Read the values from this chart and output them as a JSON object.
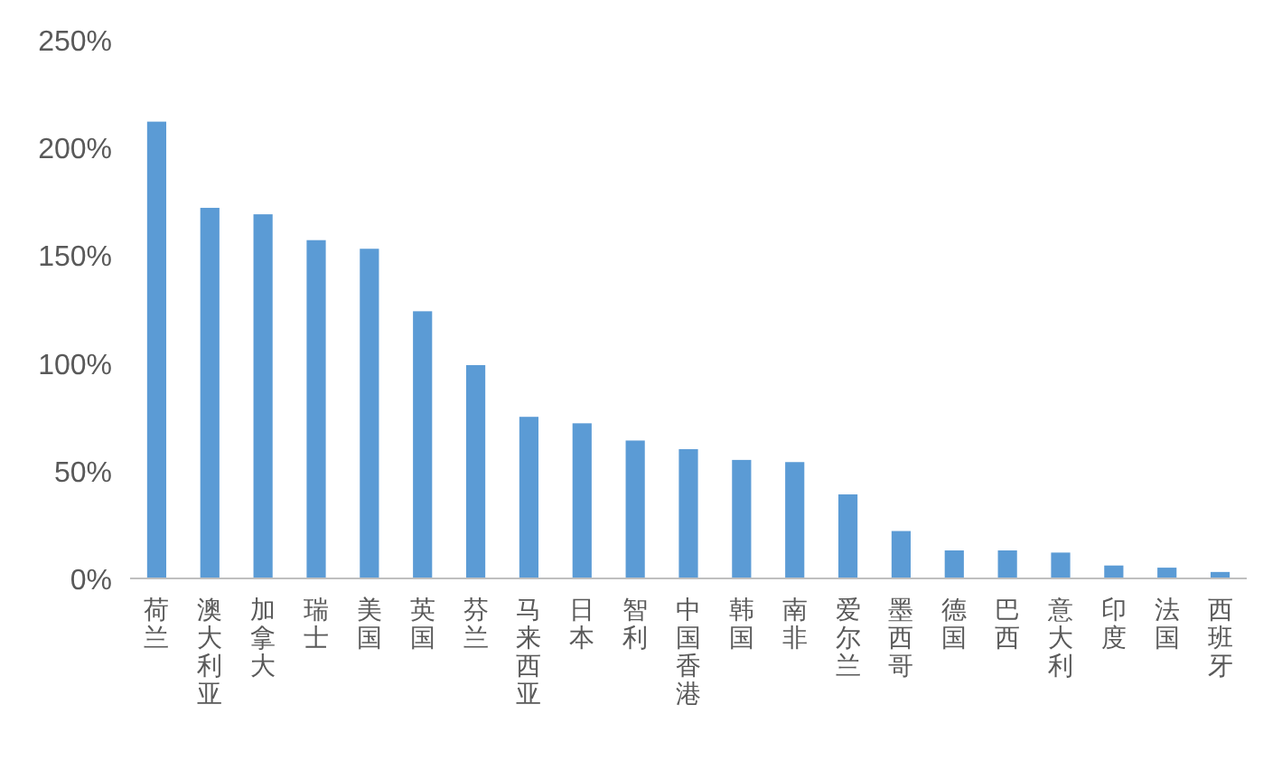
{
  "chart_data": {
    "type": "bar",
    "categories": [
      "荷兰",
      "澳大利亚",
      "加拿大",
      "瑞士",
      "美国",
      "英国",
      "芬兰",
      "马来西亚",
      "日本",
      "智利",
      "中国香港",
      "韩国",
      "南非",
      "爱尔兰",
      "墨西哥",
      "德国",
      "巴西",
      "意大利",
      "印度",
      "法国",
      "西班牙"
    ],
    "values": [
      212,
      172,
      169,
      157,
      153,
      124,
      99,
      75,
      72,
      64,
      60,
      55,
      54,
      39,
      22,
      13,
      13,
      12,
      6,
      5,
      3
    ],
    "color": "#5b9bd5",
    "ylim": [
      0,
      250
    ],
    "yticks": [
      {
        "value": 0,
        "label": "0%"
      },
      {
        "value": 50,
        "label": "50%"
      },
      {
        "value": 100,
        "label": "100%"
      },
      {
        "value": 150,
        "label": "150%"
      },
      {
        "value": 200,
        "label": "200%"
      },
      {
        "value": 250,
        "label": "250%"
      }
    ],
    "grid": false
  }
}
